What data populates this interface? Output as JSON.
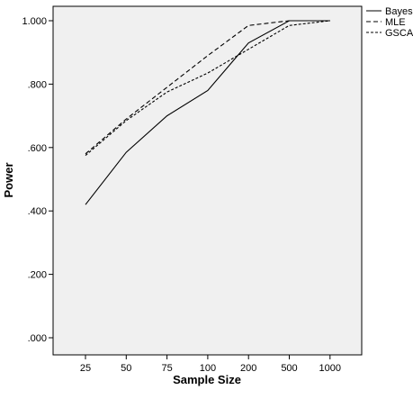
{
  "chart_data": {
    "type": "line",
    "title": "",
    "xlabel": "Sample Size",
    "ylabel": "Power",
    "categories": [
      "25",
      "50",
      "75",
      "100",
      "200",
      "500",
      "1000"
    ],
    "ylim": [
      0,
      1.0
    ],
    "yticks": [
      0.0,
      0.2,
      0.4,
      0.6,
      0.8,
      1.0
    ],
    "ytick_labels": [
      ".000",
      ".200",
      ".400",
      ".600",
      ".800",
      "1.000"
    ],
    "grid": false,
    "legend_position": "top-right-outside",
    "series": [
      {
        "name": "Bayes",
        "style": "solid",
        "values": [
          0.42,
          0.585,
          0.7,
          0.78,
          0.93,
          1.0,
          1.0
        ]
      },
      {
        "name": "MLE",
        "style": "dashed",
        "values": [
          0.58,
          0.69,
          0.79,
          0.89,
          0.985,
          1.0,
          1.0
        ]
      },
      {
        "name": "GSCA",
        "style": "dashed",
        "values": [
          0.575,
          0.685,
          0.775,
          0.835,
          0.91,
          0.985,
          1.0
        ]
      }
    ],
    "colors": {
      "plot_background": "#f0f0f0",
      "line": "#000000",
      "axis": "#000000"
    }
  }
}
